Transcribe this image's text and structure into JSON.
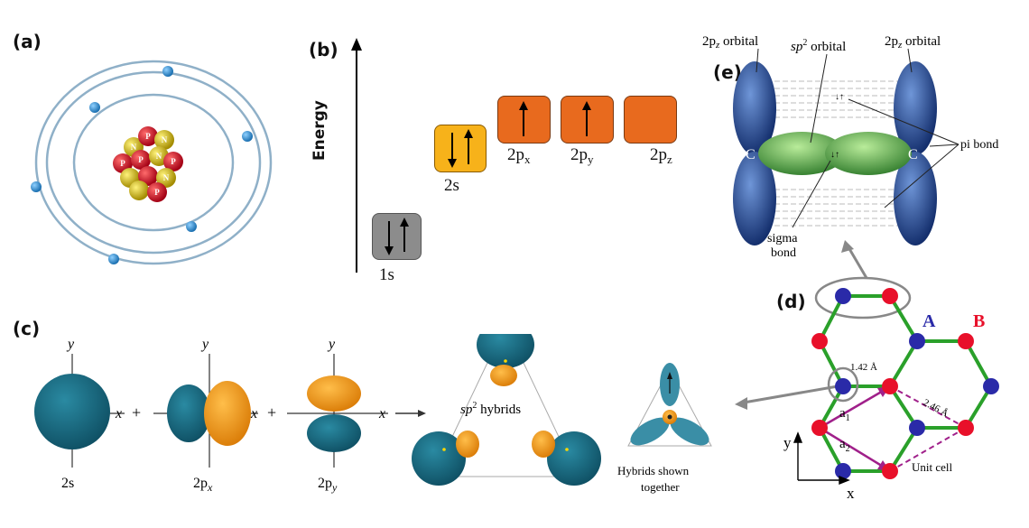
{
  "panels": {
    "a": "(a)",
    "b": "(b)",
    "c": "(c)",
    "d": "(d)",
    "e": "(e)"
  },
  "atom": {
    "nucleon_p": "P",
    "nucleon_n": "N"
  },
  "energy": {
    "axis_label": "Energy",
    "levels": [
      {
        "id": "1s",
        "label": "1s",
        "electrons": "up-down",
        "color": "#8c8c8c"
      },
      {
        "id": "2s",
        "label": "2s",
        "electrons": "up-down",
        "color": "#f7b21a"
      },
      {
        "id": "2px",
        "label": "2p",
        "sub": "x",
        "electrons": "up",
        "color": "#e86a1e"
      },
      {
        "id": "2py",
        "label": "2p",
        "sub": "y",
        "electrons": "up",
        "color": "#e86a1e"
      },
      {
        "id": "2pz",
        "label": "2p",
        "sub": "z",
        "electrons": "none",
        "color": "#e86a1e"
      }
    ]
  },
  "hybridization": {
    "axis_y": "y",
    "axis_x": "x",
    "plus": "+",
    "orb_2s": "2s",
    "orb_2px": "2p",
    "orb_2px_sub": "x",
    "orb_2py": "2p",
    "orb_2py_sub": "y",
    "sp2_label": "sp",
    "sp2_sup": "2",
    "sp2_suffix": " hybrids",
    "together_line1": "Hybrids shown",
    "together_line2": "together",
    "teal": "#1d6f86",
    "orange": "#f39a1f"
  },
  "bonding": {
    "pz_left": "2p",
    "pz_left_sub": "z",
    "pz_suffix": " orbital",
    "sp2": "sp",
    "sp2_sup": "2",
    "sp2_suffix": " orbital",
    "pz_right": "2p",
    "pz_right_sub": "z",
    "carbon": "C",
    "pi_bond": "pi bond",
    "sigma_line1": "sigma",
    "sigma_line2": "bond"
  },
  "lattice": {
    "label_a": "A",
    "label_b": "B",
    "bond_length": "1.42 Å",
    "lattice_const": "2.46 Å",
    "a1": "a",
    "a1_sub": "1",
    "a2": "a",
    "a2_sub": "2",
    "unit_cell": "Unit cell",
    "axis_y": "y",
    "axis_x": "x",
    "color_a": "#2a2aa8",
    "color_b": "#e8102a",
    "bond_color": "#2aa02a"
  }
}
